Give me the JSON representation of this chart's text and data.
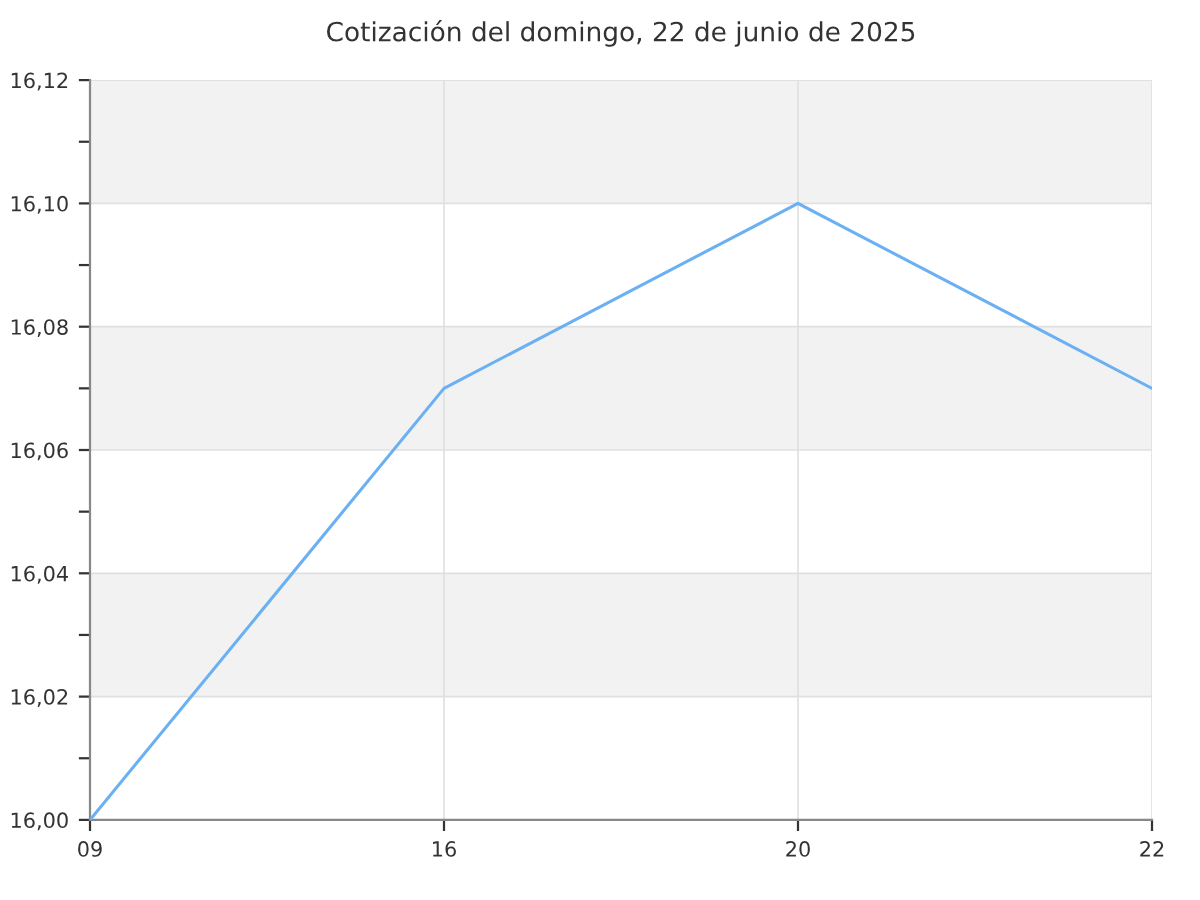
{
  "chart_data": {
    "type": "line",
    "title": "Cotización del domingo, 22 de junio de 2025",
    "categories": [
      "09",
      "16",
      "20",
      "22"
    ],
    "series": [
      {
        "color": "#6ab0f3",
        "values": [
          16.0,
          16.07,
          16.1,
          16.07
        ]
      }
    ],
    "ylim": [
      16.0,
      16.12
    ],
    "yticks": [
      {
        "value": 16.0,
        "label": "16,00"
      },
      {
        "value": 16.01,
        "label": null
      },
      {
        "value": 16.02,
        "label": "16,02"
      },
      {
        "value": 16.03,
        "label": null
      },
      {
        "value": 16.04,
        "label": "16,04"
      },
      {
        "value": 16.05,
        "label": null
      },
      {
        "value": 16.06,
        "label": "16,06"
      },
      {
        "value": 16.07,
        "label": null
      },
      {
        "value": 16.08,
        "label": "16,08"
      },
      {
        "value": 16.09,
        "label": null
      },
      {
        "value": 16.1,
        "label": "16,10"
      },
      {
        "value": 16.11,
        "label": null
      },
      {
        "value": 16.12,
        "label": "16,12"
      }
    ],
    "bands": [
      {
        "axis": "y",
        "from": 16.02,
        "to": 16.04,
        "color": "#f2f2f2"
      },
      {
        "axis": "y",
        "from": 16.06,
        "to": 16.08,
        "color": "#f2f2f2"
      },
      {
        "axis": "y",
        "from": 16.1,
        "to": 16.12,
        "color": "#f2f2f2"
      }
    ],
    "grid": true,
    "legend": false,
    "marker": "none",
    "line_style": "solid"
  }
}
